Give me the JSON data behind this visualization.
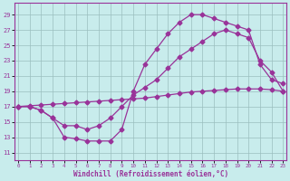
{
  "xlabel": "Windchill (Refroidissement éolien,°C)",
  "background_color": "#c8ecec",
  "line_color": "#993399",
  "x_ticks": [
    0,
    1,
    2,
    3,
    4,
    5,
    6,
    7,
    8,
    9,
    10,
    11,
    12,
    13,
    14,
    15,
    16,
    17,
    18,
    19,
    20,
    21,
    22,
    23
  ],
  "y_ticks": [
    11,
    13,
    15,
    17,
    19,
    21,
    23,
    25,
    27,
    29
  ],
  "xlim": [
    -0.3,
    23.3
  ],
  "ylim": [
    10.0,
    30.5
  ],
  "line1_y": [
    17.0,
    17.1,
    17.2,
    17.3,
    17.4,
    17.5,
    17.6,
    17.7,
    17.8,
    17.9,
    18.0,
    18.1,
    18.3,
    18.5,
    18.7,
    18.9,
    19.0,
    19.1,
    19.2,
    19.3,
    19.3,
    19.3,
    19.2,
    19.0
  ],
  "line2_y": [
    17.0,
    17.0,
    16.5,
    15.5,
    14.5,
    14.5,
    14.0,
    14.5,
    15.5,
    17.0,
    18.5,
    19.5,
    20.5,
    22.0,
    23.5,
    24.5,
    25.5,
    26.5,
    27.0,
    26.5,
    26.0,
    23.0,
    21.5,
    19.0
  ],
  "line3_y": [
    17.0,
    17.0,
    16.5,
    15.5,
    13.0,
    12.8,
    12.5,
    12.5,
    12.5,
    14.0,
    19.0,
    22.5,
    24.5,
    26.5,
    28.0,
    29.0,
    29.0,
    28.5,
    28.0,
    27.5,
    27.0,
    22.5,
    20.5,
    20.0
  ],
  "grid_color": "#9bbfbf",
  "marker": "D",
  "marker_size": 2.5,
  "linewidth": 0.9
}
